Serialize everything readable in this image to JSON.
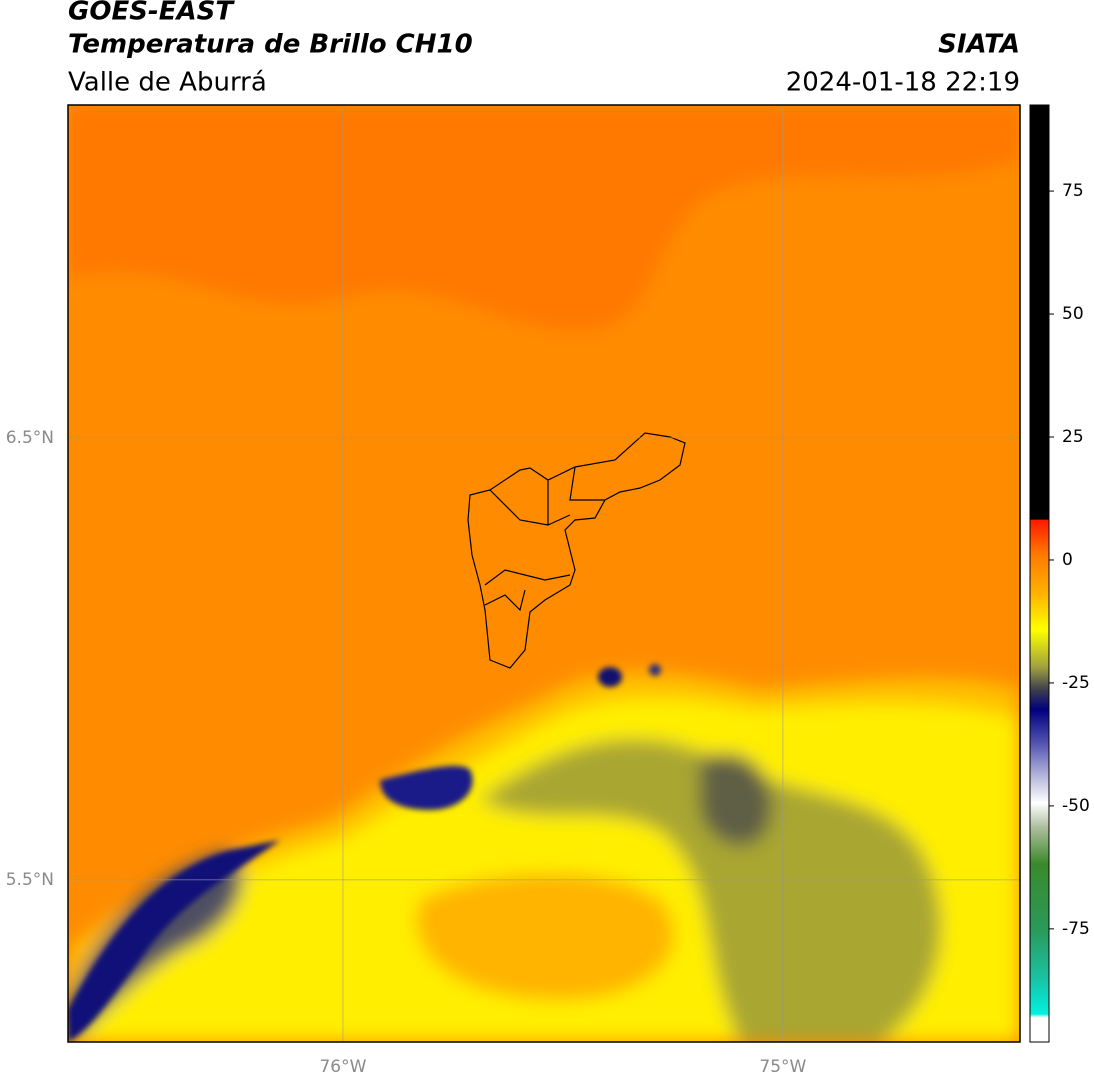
{
  "header": {
    "satellite": "GOES-EAST",
    "product": "Temperatura de Brillo CH10",
    "agency": "SIATA",
    "region": "Valle de Aburrá",
    "datetime": "2024-01-18 22:19"
  },
  "map": {
    "xlim": [
      -76.625,
      -74.461
    ],
    "ylim": [
      5.133,
      7.253
    ],
    "xticks": [
      {
        "value": -76,
        "label": "76°W"
      },
      {
        "value": -75,
        "label": "75°W"
      }
    ],
    "yticks": [
      {
        "value": 6.5,
        "label": "6.5°N"
      },
      {
        "value": 5.5,
        "label": "5.5°N"
      }
    ],
    "grid": true
  },
  "colorbar": {
    "range": [
      -98,
      92.5
    ],
    "ticks": [
      75,
      50,
      25,
      0,
      -25,
      -50,
      -75
    ]
  }
}
